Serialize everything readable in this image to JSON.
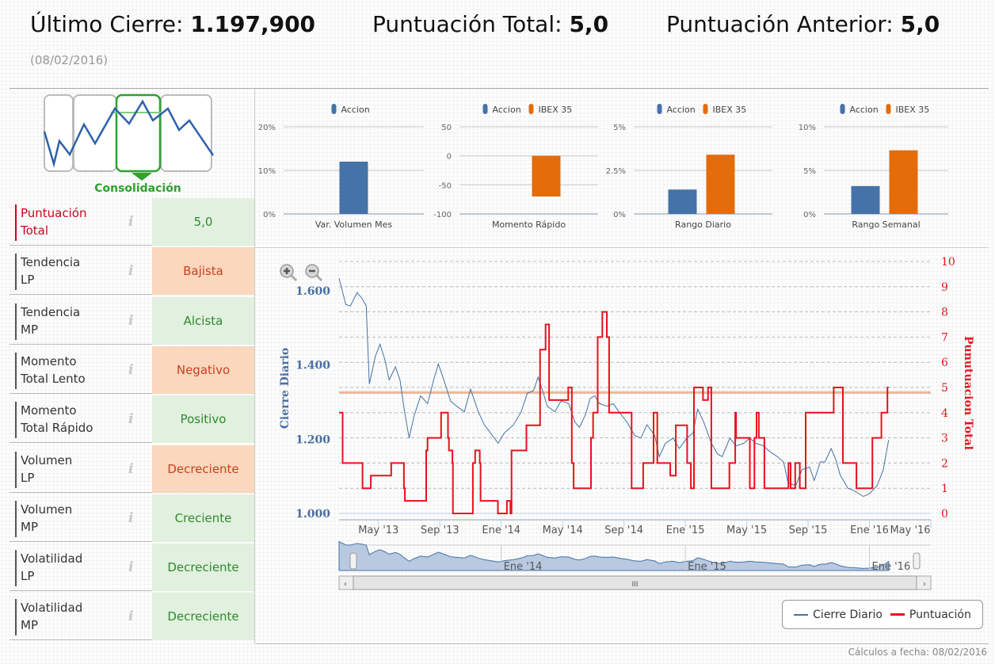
{
  "header": {
    "last_close_label": "Último Cierre:",
    "last_close_value": "1.197,900",
    "total_score_label": "Puntuación Total:",
    "total_score_value": "5,0",
    "prev_score_label": "Puntuación Anterior:",
    "prev_score_value": "5,0",
    "date": "(08/02/2016)"
  },
  "pattern": {
    "label": "Consolidación"
  },
  "indicators": [
    {
      "label1": "Puntuación",
      "label2": "Total",
      "value": "5,0",
      "status": "good",
      "highlight": true
    },
    {
      "label1": "Tendencia",
      "label2": "LP",
      "value": "Bajista",
      "status": "bad"
    },
    {
      "label1": "Tendencia",
      "label2": "MP",
      "value": "Alcista",
      "status": "good"
    },
    {
      "label1": "Momento",
      "label2": "Total Lento",
      "value": "Negativo",
      "status": "bad"
    },
    {
      "label1": "Momento",
      "label2": "Total Rápido",
      "value": "Positivo",
      "status": "good"
    },
    {
      "label1": "Volumen",
      "label2": "LP",
      "value": "Decreciente",
      "status": "bad"
    },
    {
      "label1": "Volumen",
      "label2": "MP",
      "value": "Creciente",
      "status": "good"
    },
    {
      "label1": "Volatilidad",
      "label2": "LP",
      "value": "Decreciente",
      "status": "good"
    },
    {
      "label1": "Volatilidad",
      "label2": "MP",
      "value": "Decreciente",
      "status": "good"
    }
  ],
  "info_icon": "i",
  "colors": {
    "accion": "#4572a7",
    "ibex": "#e46c0a",
    "close": "#4572a7",
    "score": "#e8101e",
    "reference": "#e8b89a",
    "good_bg": "#e1f0df",
    "bad_bg": "#fad7bd"
  },
  "chart_data": [
    {
      "type": "bar",
      "title": "Var. Volumen Mes",
      "legend": [
        "Accion"
      ],
      "yticks": [
        "20%",
        "10%",
        "0%"
      ],
      "ylim": [
        0,
        20
      ],
      "series": [
        {
          "name": "Accion",
          "values": [
            12
          ]
        }
      ]
    },
    {
      "type": "bar",
      "title": "Momento Rápido",
      "legend": [
        "Accion",
        "IBEX 35"
      ],
      "yticks": [
        "50",
        "0",
        "-50",
        "-100"
      ],
      "ylim": [
        -100,
        50
      ],
      "series": [
        {
          "name": "Accion",
          "values": [
            0
          ]
        },
        {
          "name": "IBEX 35",
          "values": [
            -70
          ]
        }
      ]
    },
    {
      "type": "bar",
      "title": "Rango Diario",
      "legend": [
        "Accion",
        "IBEX 35"
      ],
      "yticks": [
        "5%",
        "2.5%",
        "0%"
      ],
      "ylim": [
        0,
        5
      ],
      "series": [
        {
          "name": "Accion",
          "values": [
            1.4
          ]
        },
        {
          "name": "IBEX 35",
          "values": [
            3.4
          ]
        }
      ]
    },
    {
      "type": "bar",
      "title": "Rango Semanal",
      "legend": [
        "Accion",
        "IBEX 35"
      ],
      "yticks": [
        "10%",
        "5%",
        "0%"
      ],
      "ylim": [
        0,
        10
      ],
      "series": [
        {
          "name": "Accion",
          "values": [
            3.2
          ]
        },
        {
          "name": "IBEX 35",
          "values": [
            7.3
          ]
        }
      ]
    },
    {
      "type": "line",
      "x_unit": "months since Jan 2013",
      "xlim": [
        1.43,
        40
      ],
      "ylabel": "Cierre Diario",
      "ylim": [
        1000,
        1680
      ],
      "yticks": [
        {
          "v": 1000,
          "t": "1.000"
        },
        {
          "v": 1200,
          "t": "1.200"
        },
        {
          "v": 1400,
          "t": "1.400"
        },
        {
          "v": 1600,
          "t": "1.600"
        }
      ],
      "y2label": "Punutuacion Total",
      "y2lim": [
        0,
        10
      ],
      "y2ticks": [
        "0",
        "1",
        "2",
        "3",
        "4",
        "5",
        "6",
        "7",
        "8",
        "9",
        "10"
      ],
      "xticks": [
        {
          "v": 4,
          "t": "May '13"
        },
        {
          "v": 8,
          "t": "Sep '13"
        },
        {
          "v": 12,
          "t": "Ene '14"
        },
        {
          "v": 16,
          "t": "May '14"
        },
        {
          "v": 20,
          "t": "Sep '14"
        },
        {
          "v": 24,
          "t": "Ene '15"
        },
        {
          "v": 28,
          "t": "May '15"
        },
        {
          "v": 32,
          "t": "Sep '15"
        },
        {
          "v": 36,
          "t": "Ene '16"
        },
        {
          "v": 40,
          "t": "May '16"
        }
      ],
      "navigator_ticks": [
        {
          "v": 12,
          "t": "Ene '14"
        },
        {
          "v": 24,
          "t": "Ene '15"
        },
        {
          "v": 36,
          "t": "Ene '16"
        }
      ],
      "reference_line": 4.8,
      "legend": [
        "Cierre Diario",
        "Puntuación"
      ],
      "series": [
        {
          "name": "Cierre Diario",
          "points": [
            [
              1.43,
              1634
            ],
            [
              1.87,
              1563
            ],
            [
              2.17,
              1559
            ],
            [
              2.6,
              1595
            ],
            [
              2.9,
              1581
            ],
            [
              3.2,
              1559
            ],
            [
              3.4,
              1349
            ],
            [
              3.8,
              1424
            ],
            [
              4.1,
              1456
            ],
            [
              4.4,
              1417
            ],
            [
              4.7,
              1360
            ],
            [
              5.1,
              1395
            ],
            [
              5.4,
              1360
            ],
            [
              5.7,
              1274
            ],
            [
              6.0,
              1203
            ],
            [
              6.3,
              1260
            ],
            [
              6.75,
              1317
            ],
            [
              7.2,
              1296
            ],
            [
              7.6,
              1360
            ],
            [
              7.9,
              1403
            ],
            [
              8.2,
              1367
            ],
            [
              8.7,
              1303
            ],
            [
              9.1,
              1289
            ],
            [
              9.6,
              1274
            ],
            [
              10.0,
              1335
            ],
            [
              10.5,
              1274
            ],
            [
              10.9,
              1239
            ],
            [
              11.3,
              1217
            ],
            [
              11.8,
              1189
            ],
            [
              12.2,
              1217
            ],
            [
              12.8,
              1239
            ],
            [
              13.3,
              1274
            ],
            [
              13.7,
              1324
            ],
            [
              14.1,
              1331
            ],
            [
              14.4,
              1367
            ],
            [
              14.7,
              1331
            ],
            [
              15.0,
              1289
            ],
            [
              15.5,
              1274
            ],
            [
              15.9,
              1303
            ],
            [
              16.4,
              1296
            ],
            [
              16.8,
              1246
            ],
            [
              17.1,
              1232
            ],
            [
              17.5,
              1267
            ],
            [
              17.8,
              1310
            ],
            [
              18.1,
              1317
            ],
            [
              18.4,
              1296
            ],
            [
              18.9,
              1289
            ],
            [
              19.3,
              1296
            ],
            [
              19.8,
              1267
            ],
            [
              20.2,
              1246
            ],
            [
              20.7,
              1210
            ],
            [
              21.1,
              1203
            ],
            [
              21.5,
              1239
            ],
            [
              22.0,
              1210
            ],
            [
              22.3,
              1153
            ],
            [
              22.7,
              1189
            ],
            [
              23.2,
              1203
            ],
            [
              23.6,
              1175
            ],
            [
              24.1,
              1203
            ],
            [
              24.5,
              1217
            ],
            [
              24.8,
              1281
            ],
            [
              25.2,
              1246
            ],
            [
              25.7,
              1189
            ],
            [
              26.1,
              1160
            ],
            [
              26.4,
              1153
            ],
            [
              26.9,
              1203
            ],
            [
              27.3,
              1182
            ],
            [
              27.8,
              1189
            ],
            [
              28.2,
              1203
            ],
            [
              28.6,
              1189
            ],
            [
              29.1,
              1182
            ],
            [
              29.5,
              1167
            ],
            [
              30.0,
              1153
            ],
            [
              30.4,
              1139
            ],
            [
              30.7,
              1082
            ],
            [
              31.2,
              1075
            ],
            [
              31.6,
              1118
            ],
            [
              32.1,
              1125
            ],
            [
              32.4,
              1089
            ],
            [
              32.8,
              1139
            ],
            [
              33.1,
              1139
            ],
            [
              33.5,
              1175
            ],
            [
              33.8,
              1146
            ],
            [
              34.1,
              1103
            ],
            [
              34.6,
              1068
            ],
            [
              35.0,
              1061
            ],
            [
              35.6,
              1046
            ],
            [
              36.0,
              1053
            ],
            [
              36.5,
              1075
            ],
            [
              36.9,
              1118
            ],
            [
              37.25,
              1198
            ]
          ]
        },
        {
          "name": "Puntuación",
          "step": true,
          "points": [
            [
              1.43,
              4
            ],
            [
              1.66,
              2
            ],
            [
              2.96,
              1
            ],
            [
              3.5,
              1.5
            ],
            [
              4.83,
              2
            ],
            [
              5.66,
              1
            ],
            [
              5.72,
              0.5
            ],
            [
              7.11,
              2.5
            ],
            [
              7.2,
              3
            ],
            [
              8.08,
              4
            ],
            [
              8.53,
              3
            ],
            [
              8.59,
              2.5
            ],
            [
              8.82,
              2
            ],
            [
              8.85,
              0
            ],
            [
              10.15,
              2
            ],
            [
              10.3,
              2.5
            ],
            [
              10.6,
              2
            ],
            [
              10.65,
              0.5
            ],
            [
              11.78,
              0
            ],
            [
              12.37,
              0.5
            ],
            [
              12.6,
              0
            ],
            [
              12.67,
              2.5
            ],
            [
              13.64,
              3.5
            ],
            [
              14.53,
              6.5
            ],
            [
              14.89,
              7.5
            ],
            [
              15.12,
              4.5
            ],
            [
              16.37,
              5
            ],
            [
              16.6,
              2
            ],
            [
              16.72,
              1
            ],
            [
              17.85,
              3
            ],
            [
              17.99,
              4
            ],
            [
              18.29,
              7
            ],
            [
              18.59,
              8
            ],
            [
              18.88,
              7
            ],
            [
              19.03,
              4
            ],
            [
              20.5,
              1
            ],
            [
              21.25,
              2
            ],
            [
              21.93,
              4
            ],
            [
              22.17,
              2
            ],
            [
              23.02,
              1.5
            ],
            [
              23.38,
              3.5
            ],
            [
              24.12,
              2
            ],
            [
              24.36,
              1
            ],
            [
              24.56,
              5
            ],
            [
              25.15,
              4.5
            ],
            [
              25.48,
              5
            ],
            [
              25.69,
              1
            ],
            [
              26.87,
              2
            ],
            [
              27.25,
              4
            ],
            [
              27.31,
              3
            ],
            [
              28.2,
              1
            ],
            [
              28.5,
              3
            ],
            [
              28.64,
              4
            ],
            [
              28.79,
              3
            ],
            [
              29.15,
              1
            ],
            [
              30.72,
              2
            ],
            [
              30.86,
              1
            ],
            [
              31.16,
              2
            ],
            [
              31.46,
              1
            ],
            [
              31.84,
              4
            ],
            [
              33.67,
              5
            ],
            [
              34.27,
              2
            ],
            [
              35.15,
              1
            ],
            [
              36.19,
              3
            ],
            [
              36.78,
              4
            ],
            [
              37.17,
              5
            ],
            [
              37.25,
              5
            ]
          ]
        }
      ]
    }
  ],
  "footer": "Cálculos a fecha: 08/02/2016"
}
